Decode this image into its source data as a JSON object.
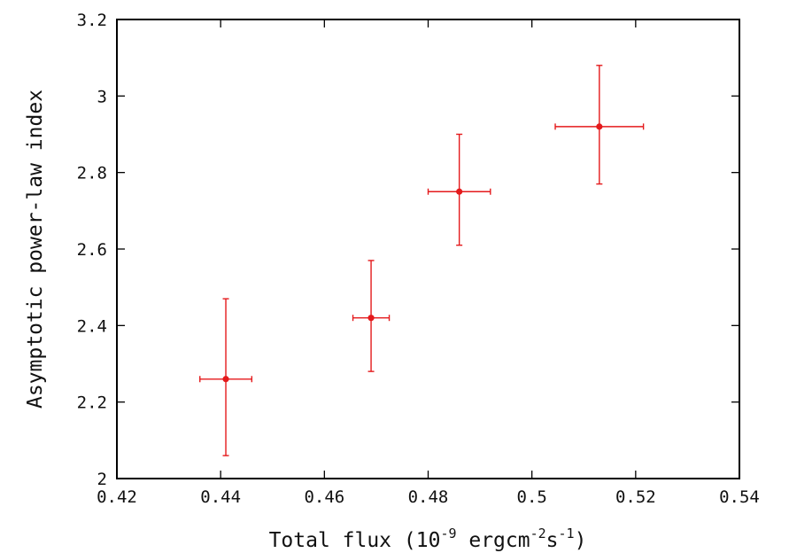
{
  "chart_data": {
    "type": "scatter",
    "xlabel": {
      "prefix": "Total flux (10",
      "exp1": "-9",
      "mid": " ergcm",
      "exp2": "-2",
      "mid2": "s",
      "exp3": "-1",
      "suffix": ")"
    },
    "ylabel": "Asymptotic power-law index",
    "xlim": [
      0.42,
      0.54
    ],
    "ylim": [
      2.0,
      3.2
    ],
    "x_ticks": [
      0.42,
      0.44,
      0.46,
      0.48,
      0.5,
      0.52,
      0.54
    ],
    "x_tick_labels": [
      "0.42",
      "0.44",
      "0.46",
      "0.48",
      "0.5",
      "0.52",
      "0.54"
    ],
    "y_ticks": [
      2.0,
      2.2,
      2.4,
      2.6,
      2.8,
      3.0,
      3.2
    ],
    "y_tick_labels": [
      "2",
      "2.2",
      "2.4",
      "2.6",
      "2.8",
      "3",
      "3.2"
    ],
    "grid": false,
    "series": [
      {
        "color": "#e41a1c",
        "points": [
          {
            "x": 0.441,
            "y": 2.26,
            "xerr": 0.005,
            "yerr_low": 0.2,
            "yerr_high": 0.21
          },
          {
            "x": 0.469,
            "y": 2.42,
            "xerr": 0.0035,
            "yerr_low": 0.14,
            "yerr_high": 0.15
          },
          {
            "x": 0.486,
            "y": 2.75,
            "xerr": 0.006,
            "yerr_low": 0.14,
            "yerr_high": 0.15
          },
          {
            "x": 0.513,
            "y": 2.92,
            "xerr": 0.0085,
            "yerr_low": 0.15,
            "yerr_high": 0.16
          }
        ]
      }
    ]
  }
}
